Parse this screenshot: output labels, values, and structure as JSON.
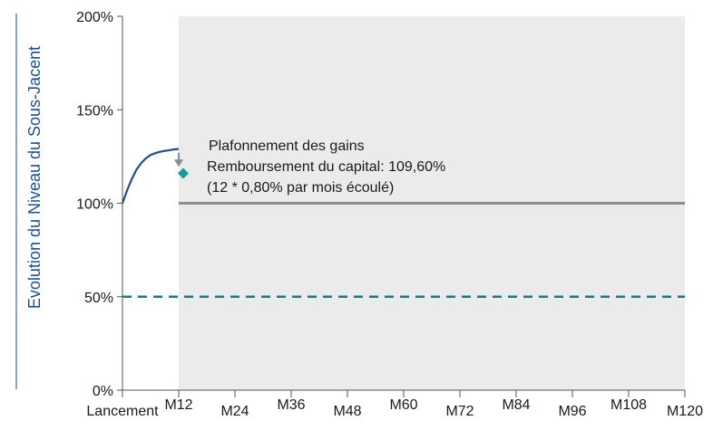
{
  "chart_data": {
    "type": "line",
    "title": "",
    "xlabel": "",
    "ylabel": "Evolution du Niveau du Sous-Jacent",
    "x_categories": [
      "Lancement",
      "M12",
      "M24",
      "M36",
      "M48",
      "M60",
      "M72",
      "M84",
      "M96",
      "M108",
      "M120"
    ],
    "x_months": [
      0,
      12,
      24,
      36,
      48,
      60,
      72,
      84,
      96,
      108,
      120
    ],
    "y_ticks": [
      "0%",
      "50%",
      "100%",
      "150%",
      "200%"
    ],
    "y_tick_values": [
      0,
      50,
      100,
      150,
      200
    ],
    "ylim": [
      0,
      200
    ],
    "xlim": [
      0,
      120
    ],
    "grid": false,
    "shaded_region": {
      "x_start": 12,
      "x_end": 120,
      "color": "#ebebeb"
    },
    "series": [
      {
        "style": "solid",
        "color": "#1f4e8c",
        "x": [
          0,
          1,
          2,
          3,
          4,
          5,
          6,
          7,
          8,
          9,
          10,
          11,
          12
        ],
        "y": [
          100,
          107,
          113,
          118,
          121.5,
          124,
          125.8,
          126.8,
          127.5,
          128,
          128.4,
          128.8,
          129
        ]
      },
      {
        "style": "solid",
        "color": "#8c8c8c",
        "x": [
          12,
          120
        ],
        "y": [
          100,
          100
        ]
      },
      {
        "style": "dashed",
        "color": "#1a7a80",
        "x": [
          0,
          120
        ],
        "y": [
          50,
          50
        ]
      }
    ],
    "markers": [
      {
        "shape": "diamond",
        "color": "#1f9a9a",
        "x": 12,
        "y": 116
      }
    ],
    "arrow": {
      "x": 12,
      "y_from": 129,
      "y_to": 120,
      "color": "#8c8c8c"
    },
    "annotations": [
      "Plafonnement des gains",
      "Remboursement du capital: 109,60%",
      "(12 * 0,80% par mois écoulé)"
    ]
  }
}
